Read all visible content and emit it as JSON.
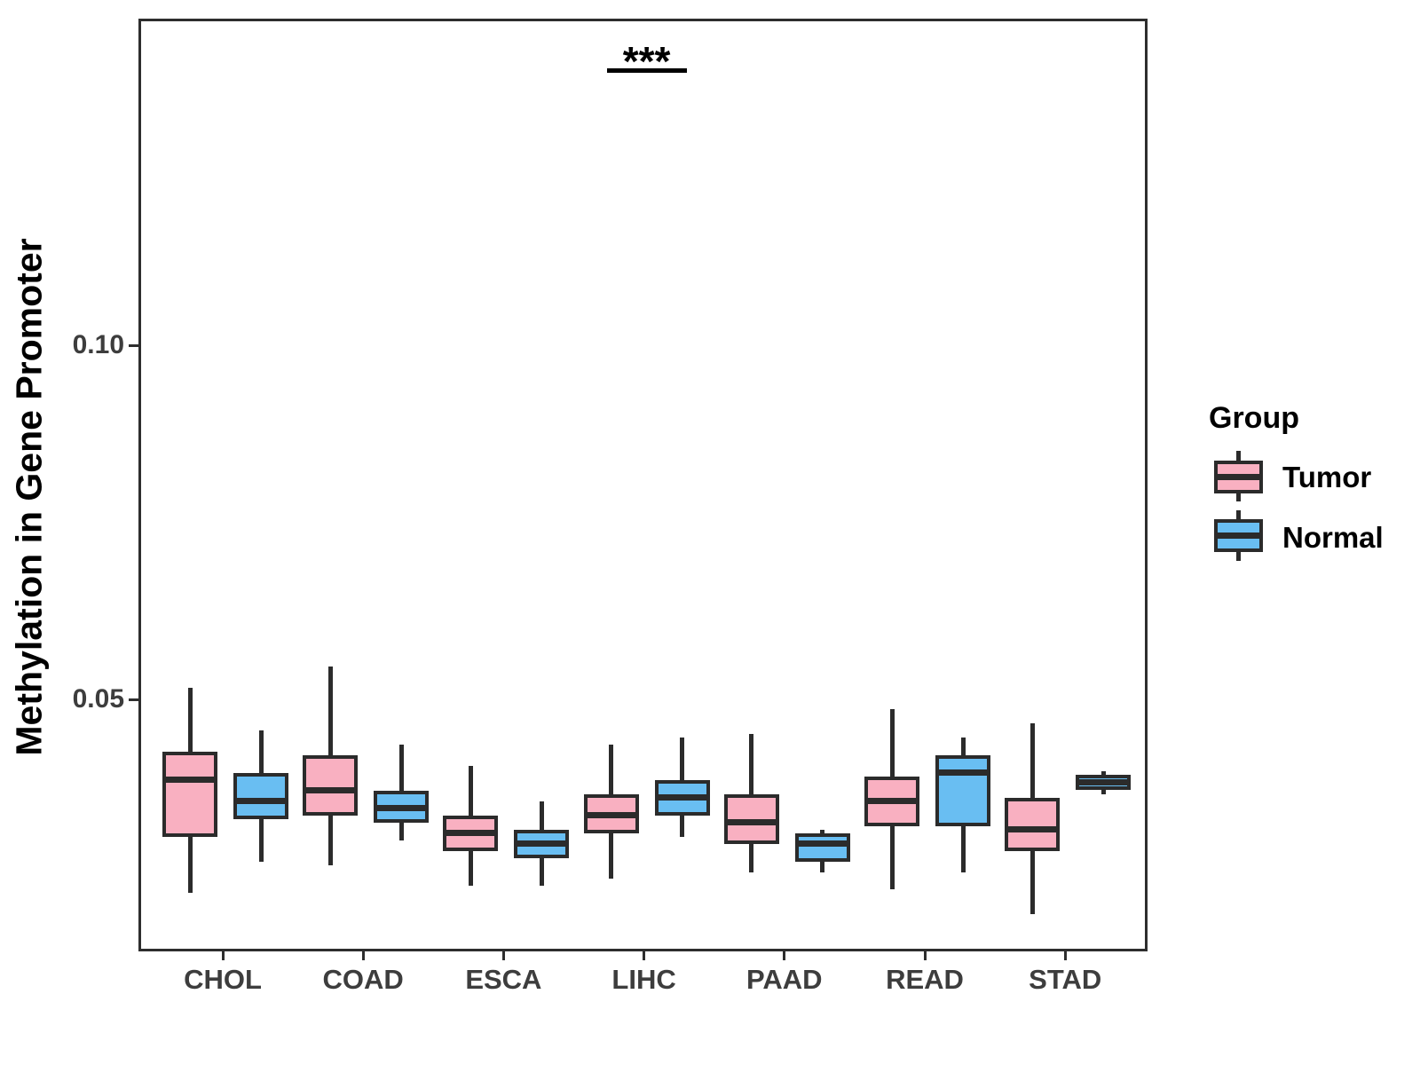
{
  "chart_data": {
    "type": "boxplot",
    "title": "",
    "ylabel": "Methylation in Gene Promoter",
    "xlabel": "",
    "legend_title": "Group",
    "legend_position": "right",
    "grid": false,
    "categories": [
      "CHOL",
      "COAD",
      "ESCA",
      "LIHC",
      "PAAD",
      "READ",
      "STAD"
    ],
    "ylim": [
      0.014,
      0.146
    ],
    "y_ticks": [
      {
        "value": 0.05,
        "label": "0.05"
      },
      {
        "value": 0.1,
        "label": "0.10"
      }
    ],
    "significance": {
      "category": "LIHC",
      "label": "***",
      "y": 0.1395
    },
    "box_border_color": "#2b2b2b",
    "series": [
      {
        "name": "Tumor",
        "color": "#f9b0c1",
        "boxes": [
          {
            "category": "CHOL",
            "low": 0.023,
            "q1": 0.031,
            "median": 0.039,
            "q3": 0.043,
            "high": 0.052
          },
          {
            "category": "COAD",
            "low": 0.027,
            "q1": 0.034,
            "median": 0.0375,
            "q3": 0.0425,
            "high": 0.055
          },
          {
            "category": "ESCA",
            "low": 0.024,
            "q1": 0.029,
            "median": 0.0315,
            "q3": 0.034,
            "high": 0.041
          },
          {
            "category": "LIHC",
            "low": 0.025,
            "q1": 0.0315,
            "median": 0.034,
            "q3": 0.037,
            "high": 0.044
          },
          {
            "category": "PAAD",
            "low": 0.026,
            "q1": 0.03,
            "median": 0.033,
            "q3": 0.037,
            "high": 0.0455
          },
          {
            "category": "READ",
            "low": 0.0235,
            "q1": 0.0325,
            "median": 0.036,
            "q3": 0.0395,
            "high": 0.049
          },
          {
            "category": "STAD",
            "low": 0.02,
            "q1": 0.029,
            "median": 0.032,
            "q3": 0.0365,
            "high": 0.047
          }
        ]
      },
      {
        "name": "Normal",
        "color": "#69bef2",
        "boxes": [
          {
            "category": "CHOL",
            "low": 0.0275,
            "q1": 0.0335,
            "median": 0.036,
            "q3": 0.04,
            "high": 0.046
          },
          {
            "category": "COAD",
            "low": 0.0305,
            "q1": 0.033,
            "median": 0.035,
            "q3": 0.0375,
            "high": 0.044
          },
          {
            "category": "ESCA",
            "low": 0.024,
            "q1": 0.028,
            "median": 0.03,
            "q3": 0.032,
            "high": 0.036
          },
          {
            "category": "LIHC",
            "low": 0.031,
            "q1": 0.034,
            "median": 0.0365,
            "q3": 0.039,
            "high": 0.045
          },
          {
            "category": "PAAD",
            "low": 0.026,
            "q1": 0.0275,
            "median": 0.03,
            "q3": 0.0315,
            "high": 0.032
          },
          {
            "category": "READ",
            "low": 0.026,
            "q1": 0.0325,
            "median": 0.04,
            "q3": 0.0425,
            "high": 0.045
          },
          {
            "category": "STAD",
            "low": 0.037,
            "q1": 0.0376,
            "median": 0.0387,
            "q3": 0.0397,
            "high": 0.0402
          }
        ]
      }
    ]
  }
}
